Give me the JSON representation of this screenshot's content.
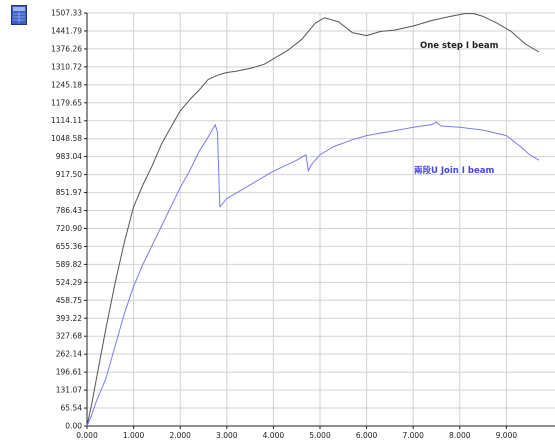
{
  "colors": {
    "background": "#ffffff",
    "grid": "#d2d2d2",
    "axis": "#222222",
    "series_one": "#555555",
    "series_two": "#7b7bef",
    "label_two": "#4646e6",
    "icon_body": "#3c5ec8"
  },
  "icon": {
    "name": "table-icon"
  },
  "chart_data": {
    "type": "line",
    "title": "",
    "xlabel": "",
    "ylabel": "",
    "xlim": [
      0,
      9.7
    ],
    "ylim": [
      0,
      1507.33
    ],
    "grid": true,
    "legend": "none",
    "x_tick_labels": [
      "0.000",
      "1.000",
      "2.000",
      "3.000",
      "4.000",
      "5.000",
      "6.000",
      "7.000",
      "8.000",
      "9.000"
    ],
    "y_tick_labels": [
      "0.00",
      "65.54",
      "131.07",
      "196.61",
      "262.14",
      "327.68",
      "393.22",
      "458.75",
      "524.29",
      "589.82",
      "655.36",
      "720.90",
      "786.43",
      "851.97",
      "917.50",
      "983.04",
      "1048.58",
      "1114.11",
      "1179.65",
      "1245.18",
      "1310.72",
      "1376.26",
      "1441.79",
      "1507.33"
    ],
    "series": [
      {
        "name": "One step I beam",
        "x": [
          0,
          0.1,
          0.2,
          0.4,
          0.6,
          0.8,
          1.0,
          1.2,
          1.4,
          1.6,
          1.8,
          2.0,
          2.2,
          2.4,
          2.6,
          2.8,
          2.9,
          3.0,
          3.2,
          3.5,
          3.8,
          4.0,
          4.3,
          4.6,
          4.9,
          5.1,
          5.4,
          5.7,
          6.0,
          6.3,
          6.6,
          7.0,
          7.4,
          7.8,
          8.1,
          8.3,
          8.5,
          8.8,
          9.1,
          9.4,
          9.7
        ],
        "values": [
          0,
          80,
          170,
          350,
          520,
          670,
          800,
          880,
          950,
          1030,
          1090,
          1150,
          1190,
          1225,
          1265,
          1280,
          1285,
          1290,
          1295,
          1305,
          1320,
          1340,
          1370,
          1410,
          1470,
          1490,
          1475,
          1435,
          1425,
          1440,
          1445,
          1460,
          1480,
          1495,
          1505,
          1505,
          1495,
          1470,
          1440,
          1395,
          1365
        ]
      },
      {
        "name": "兩段U Join I beam",
        "x": [
          0,
          0.1,
          0.2,
          0.4,
          0.6,
          0.8,
          1.0,
          1.2,
          1.4,
          1.6,
          1.8,
          2.0,
          2.2,
          2.4,
          2.6,
          2.75,
          2.8,
          2.85,
          3.0,
          3.5,
          4.0,
          4.5,
          4.7,
          4.75,
          4.8,
          5.0,
          5.3,
          5.7,
          6.0,
          6.5,
          7.0,
          7.4,
          7.5,
          7.55,
          7.6,
          8.0,
          8.5,
          9.0,
          9.3,
          9.5,
          9.7
        ],
        "values": [
          0,
          40,
          90,
          170,
          290,
          410,
          510,
          590,
          660,
          730,
          800,
          870,
          930,
          1000,
          1055,
          1100,
          1070,
          800,
          830,
          880,
          930,
          970,
          990,
          930,
          950,
          990,
          1020,
          1045,
          1060,
          1075,
          1090,
          1100,
          1110,
          1100,
          1095,
          1090,
          1080,
          1060,
          1020,
          990,
          970
        ]
      }
    ]
  }
}
